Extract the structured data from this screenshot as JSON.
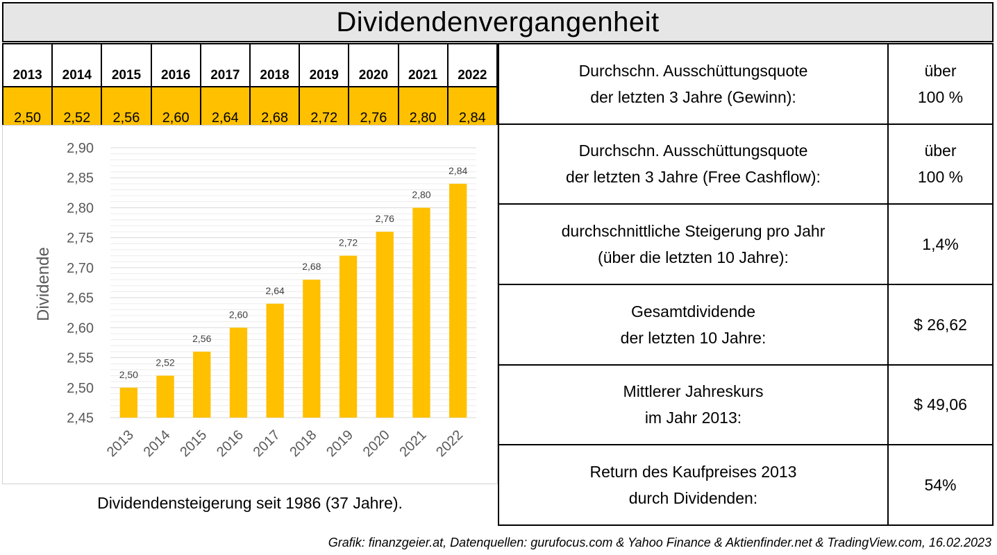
{
  "title": "Dividendenvergangenheit",
  "chart_data": {
    "type": "bar",
    "categories": [
      "2013",
      "2014",
      "2015",
      "2016",
      "2017",
      "2018",
      "2019",
      "2020",
      "2021",
      "2022"
    ],
    "values": [
      2.5,
      2.52,
      2.56,
      2.6,
      2.64,
      2.68,
      2.72,
      2.76,
      2.8,
      2.84
    ],
    "value_labels": [
      "2,50",
      "2,52",
      "2,56",
      "2,60",
      "2,64",
      "2,68",
      "2,72",
      "2,76",
      "2,80",
      "2,84"
    ],
    "ylabel": "Dividende",
    "ylim": [
      2.45,
      2.9
    ],
    "yticks": [
      "2,45",
      "2,50",
      "2,55",
      "2,60",
      "2,65",
      "2,70",
      "2,75",
      "2,80",
      "2,85",
      "2,90"
    ],
    "bar_color": "#ffc000",
    "grid": true
  },
  "year_table": {
    "years": [
      "2013",
      "2014",
      "2015",
      "2016",
      "2017",
      "2018",
      "2019",
      "2020",
      "2021",
      "2022"
    ],
    "values": [
      "2,50",
      "2,52",
      "2,56",
      "2,60",
      "2,64",
      "2,68",
      "2,72",
      "2,76",
      "2,80",
      "2,84"
    ],
    "highlight_color": "#ffc000"
  },
  "caption": "Dividendensteigerung seit 1986 (37 Jahre).",
  "metrics": [
    {
      "label_lines": [
        "Durchschn. Ausschüttungsquote",
        "der letzten 3 Jahre (Gewinn):"
      ],
      "value_lines": [
        "über",
        "100 %"
      ]
    },
    {
      "label_lines": [
        "Durchschn. Ausschüttungsquote",
        "der letzten 3 Jahre (Free Cashflow):"
      ],
      "value_lines": [
        "über",
        "100 %"
      ]
    },
    {
      "label_lines": [
        "durchschnittliche Steigerung pro Jahr",
        "(über die letzten 10 Jahre):"
      ],
      "value_lines": [
        "1,4%"
      ]
    },
    {
      "label_lines": [
        "Gesamtdividende",
        "der letzten 10 Jahre:"
      ],
      "value_lines": [
        "$ 26,62"
      ]
    },
    {
      "label_lines": [
        "Mittlerer Jahreskurs",
        "im Jahr 2013:"
      ],
      "value_lines": [
        "$ 49,06"
      ]
    },
    {
      "label_lines": [
        "Return des Kaufpreises 2013",
        "durch Dividenden:"
      ],
      "value_lines": [
        "54%"
      ]
    }
  ],
  "footer": "Grafik: finanzgeier.at, Datenquellen: gurufocus.com & Yahoo Finance & Aktienfinder.net & TradingView.com, 16.02.2023"
}
